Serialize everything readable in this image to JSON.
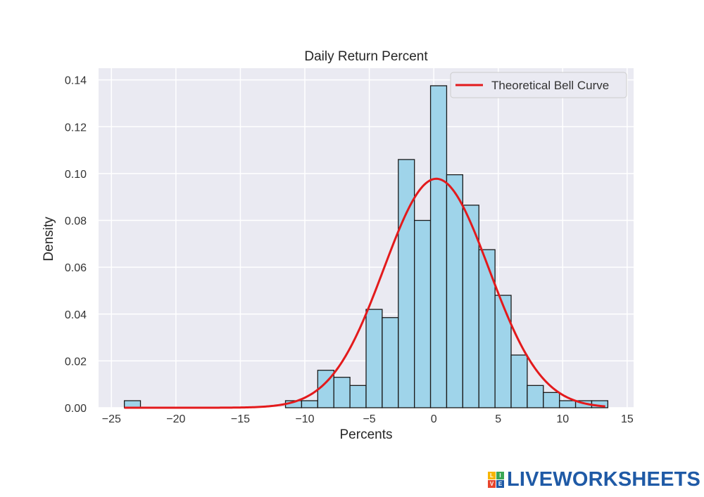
{
  "chart_data": {
    "type": "bar",
    "title": "Daily Return Percent",
    "xlabel": "Percents",
    "ylabel": "Density",
    "xlim": [
      -26,
      15.5
    ],
    "ylim": [
      0,
      0.145
    ],
    "xticks": [
      -25,
      -20,
      -15,
      -10,
      -5,
      0,
      5,
      10,
      15
    ],
    "xtick_labels": [
      "−25",
      "−20",
      "−15",
      "−10",
      "−5",
      "0",
      "5",
      "10",
      "15"
    ],
    "yticks": [
      0,
      0.02,
      0.04,
      0.06,
      0.08,
      0.1,
      0.12,
      0.14
    ],
    "ytick_labels": [
      "0.00",
      "0.02",
      "0.04",
      "0.06",
      "0.08",
      "0.10",
      "0.12",
      "0.14"
    ],
    "grid": true,
    "legend_position": "top-right",
    "bin_width": 1.25,
    "bins": [
      {
        "x0": -24.0,
        "value": 0.003
      },
      {
        "x0": -11.5,
        "value": 0.003
      },
      {
        "x0": -10.25,
        "value": 0.003
      },
      {
        "x0": -9.0,
        "value": 0.016
      },
      {
        "x0": -7.75,
        "value": 0.013
      },
      {
        "x0": -6.5,
        "value": 0.0095
      },
      {
        "x0": -5.25,
        "value": 0.042
      },
      {
        "x0": -4.0,
        "value": 0.0385
      },
      {
        "x0": -2.75,
        "value": 0.106
      },
      {
        "x0": -1.5,
        "value": 0.08
      },
      {
        "x0": -0.25,
        "value": 0.1375
      },
      {
        "x0": 1.0,
        "value": 0.0995
      },
      {
        "x0": 2.25,
        "value": 0.0865
      },
      {
        "x0": 3.5,
        "value": 0.0675
      },
      {
        "x0": 4.75,
        "value": 0.048
      },
      {
        "x0": 6.0,
        "value": 0.0225
      },
      {
        "x0": 7.25,
        "value": 0.0095
      },
      {
        "x0": 8.5,
        "value": 0.0065
      },
      {
        "x0": 9.75,
        "value": 0.003
      },
      {
        "x0": 11.0,
        "value": 0.003
      },
      {
        "x0": 12.25,
        "value": 0.003
      }
    ],
    "series": [
      {
        "name": "Theoretical Bell Curve",
        "type": "line",
        "color": "#e31a1c",
        "mean": 0.2,
        "std": 4.08,
        "x_range": [
          -24.0,
          13.3
        ]
      }
    ],
    "colors": {
      "bar_fill": "#9fd4ea",
      "bar_edge": "#1a1a1a",
      "plot_bg": "#eaeaf2",
      "grid": "#ffffff"
    }
  },
  "brand": {
    "text": "LIVEWORKSHEETS",
    "mark_letters": [
      "L",
      "I",
      "V",
      "E"
    ],
    "mark_colors": [
      "#f7b500",
      "#3aa655",
      "#e8452c",
      "#1f5aa6"
    ]
  }
}
